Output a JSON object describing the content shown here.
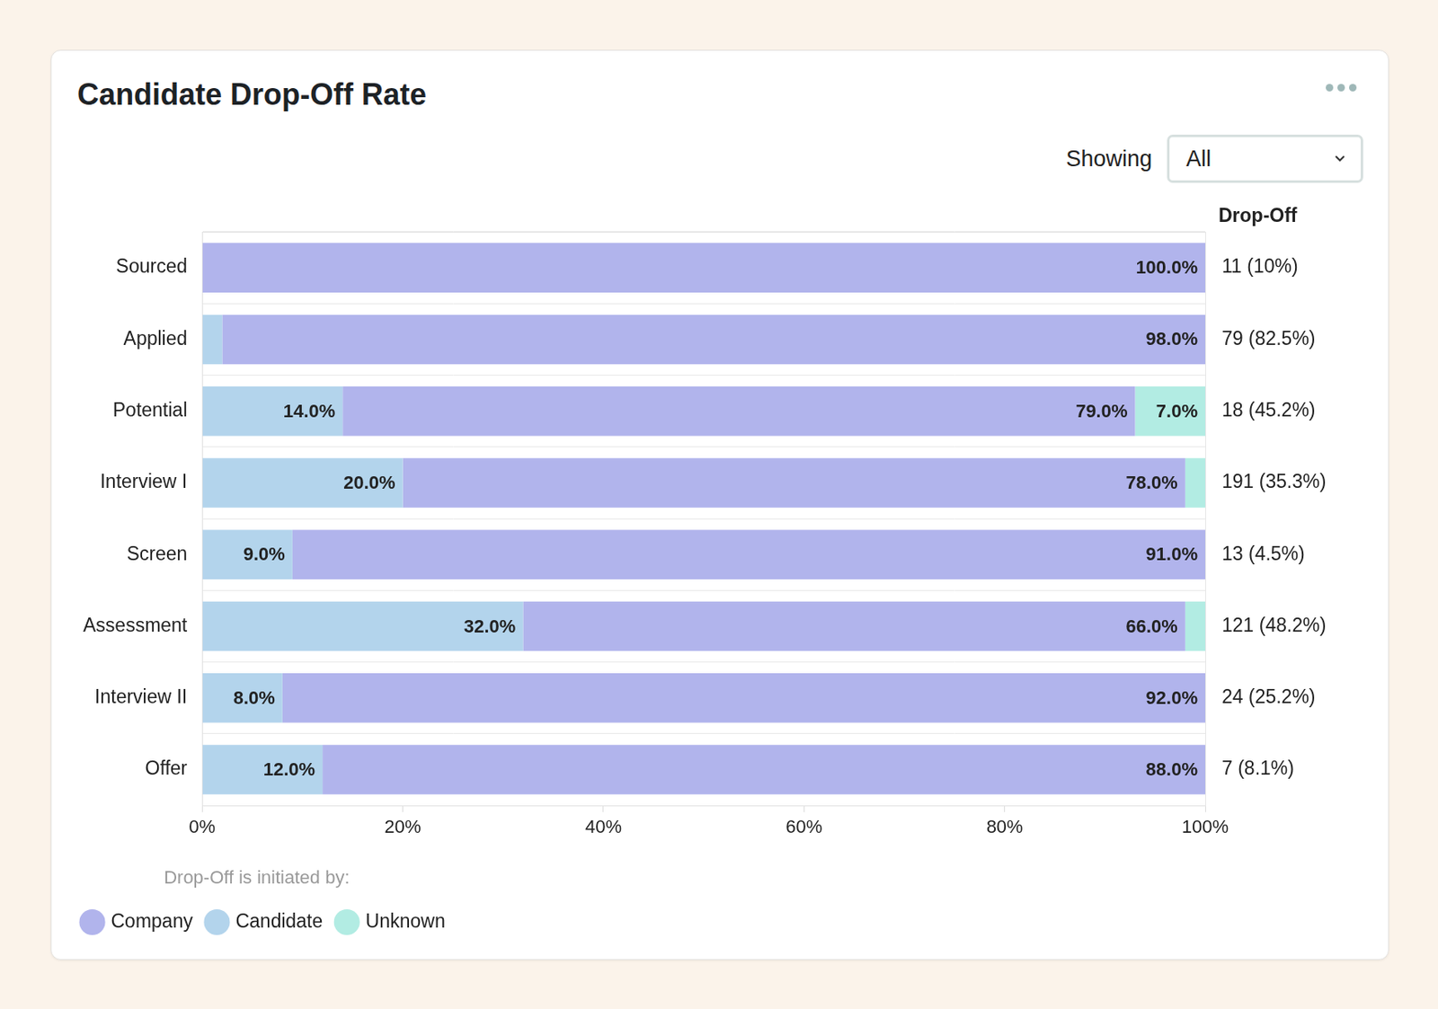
{
  "chart_data": {
    "type": "bar",
    "title": "Candidate Drop-Off Rate",
    "orientation": "horizontal",
    "stacked": true,
    "data_labels": true,
    "grid": false,
    "legend": "bottom",
    "legend_title": "Drop-Off is initiated by:",
    "categories": [
      "Sourced",
      "Applied",
      "Potential",
      "Interview I",
      "Screen",
      "Assessment",
      "Interview II",
      "Offer"
    ],
    "series": [
      {
        "name": "Company",
        "color": "#b1b4ec",
        "values": [
          100,
          98,
          79,
          78,
          91,
          66,
          92,
          88
        ],
        "value_labels": [
          "100.0%",
          "98.0%",
          "79.0%",
          "78.0%",
          "91.0%",
          "66.0%",
          "92.0%",
          "88.0%"
        ]
      },
      {
        "name": "Candidate",
        "color": "#b3d4ec",
        "values": [
          0,
          2,
          14,
          20,
          9,
          32,
          8,
          12
        ],
        "value_labels": [
          null,
          null,
          "14.0%",
          "20.0%",
          "9.0%",
          "32.0%",
          "8.0%",
          "12.0%"
        ]
      },
      {
        "name": "Unknown",
        "color": "#b2ece3",
        "values": [
          0,
          0,
          7,
          2,
          0,
          2,
          0,
          0
        ],
        "value_labels": [
          null,
          null,
          "7.0%",
          null,
          null,
          null,
          null,
          null
        ]
      }
    ],
    "xlim": [
      0,
      100
    ],
    "xticks": [
      {
        "value": 0,
        "label": "0%"
      },
      {
        "value": 20,
        "label": "20%"
      },
      {
        "value": 40,
        "label": "40%"
      },
      {
        "value": 60,
        "label": "60%"
      },
      {
        "value": 80,
        "label": "80%"
      },
      {
        "value": 100,
        "label": "100%"
      }
    ],
    "drop_off": {
      "title": "Drop-Off",
      "labels": [
        "11 (10%)",
        "79 (82.5%)",
        "18 (45.2%)",
        "191 (35.3%)",
        "13 (4.5%)",
        "121 (48.2%)",
        "24 (25.2%)",
        "7 (8.1%)"
      ]
    }
  },
  "controls": {
    "label": "Showing",
    "value": "All"
  }
}
